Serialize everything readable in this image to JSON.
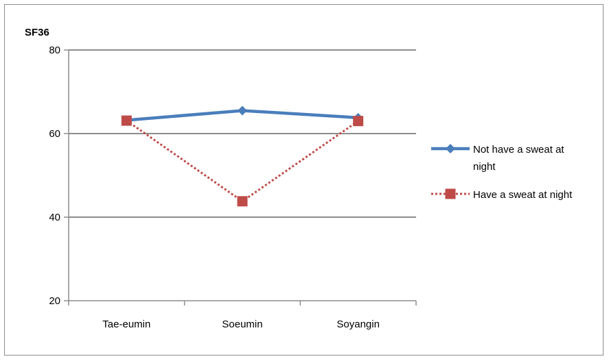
{
  "chart_data": {
    "type": "line",
    "ylabel": "SF36",
    "xlabel": "",
    "title": "",
    "ylim": [
      20,
      80
    ],
    "yticks": [
      20,
      40,
      60,
      80
    ],
    "categories": [
      "Tae-eumin",
      "Soeumin",
      "Soyangin"
    ],
    "grid": "horizontal",
    "legend_position": "right",
    "series": [
      {
        "name": "Not have a sweat at night",
        "name_lines": [
          "Not have a sweat at",
          "night"
        ],
        "values": [
          63.2,
          65.5,
          63.8
        ],
        "color": "#4a7ebb",
        "marker": "diamond",
        "line_style": "solid"
      },
      {
        "name": "Have a sweat at night",
        "name_lines": [
          "Have a sweat at night"
        ],
        "values": [
          63.1,
          43.8,
          63.0
        ],
        "color": "#be4b48",
        "marker": "square",
        "line_style": "dotted"
      }
    ]
  }
}
